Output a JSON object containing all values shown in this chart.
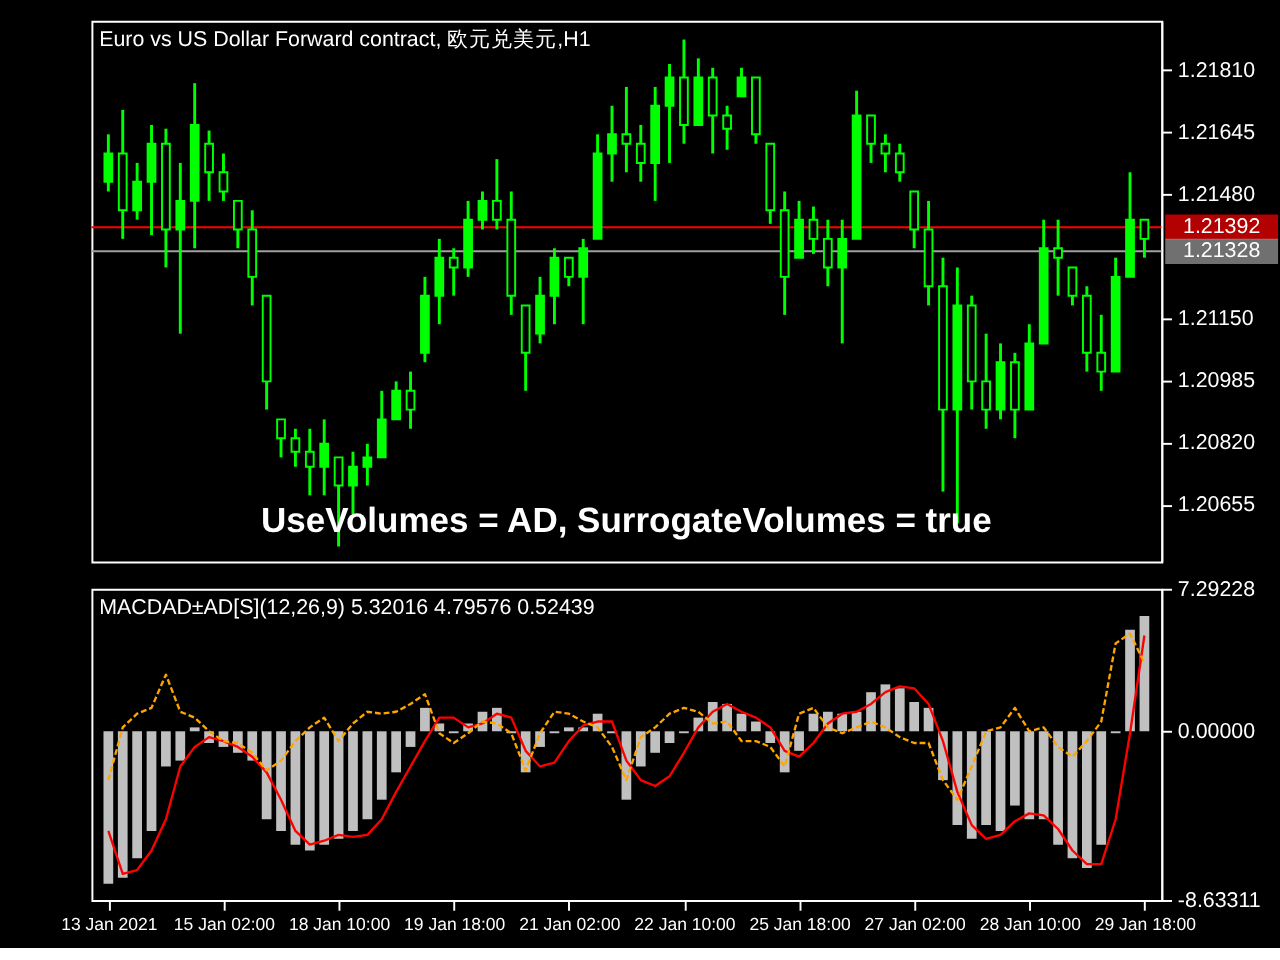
{
  "chart_data": [
    {
      "type": "candlestick",
      "title": "Euro vs US Dollar Forward contract, 欧元兑美元,H1",
      "categories": [
        null,
        null,
        null,
        null,
        null,
        null,
        null,
        null,
        null,
        null,
        null,
        null,
        null,
        null,
        null,
        null,
        null,
        null,
        null,
        null,
        null,
        null,
        null,
        null,
        null,
        null,
        null,
        null,
        null,
        null,
        null,
        null,
        null,
        null,
        null,
        null,
        null,
        null,
        null,
        null,
        null,
        null,
        null,
        null,
        null,
        null,
        null,
        null,
        null,
        null,
        null,
        null,
        null,
        null,
        null,
        null,
        null,
        null,
        null,
        null,
        null,
        null,
        null,
        null,
        null,
        null,
        null,
        null,
        null,
        null,
        null,
        null,
        null
      ],
      "ohlc": [
        [
          1.21513,
          1.21639,
          1.21487,
          1.21588
        ],
        [
          1.21588,
          1.21704,
          1.21361,
          1.21437
        ],
        [
          1.21437,
          1.21563,
          1.21412,
          1.21513
        ],
        [
          1.21513,
          1.21664,
          1.21371,
          1.21614
        ],
        [
          1.21614,
          1.21654,
          1.21285,
          1.21386
        ],
        [
          1.21386,
          1.21563,
          1.21109,
          1.21462
        ],
        [
          1.21462,
          1.21775,
          1.21336,
          1.21664
        ],
        [
          1.21614,
          1.21649,
          1.21462,
          1.21538
        ],
        [
          1.21538,
          1.21588,
          1.21462,
          1.21487
        ],
        [
          1.21462,
          1.21462,
          1.21336,
          1.21386
        ],
        [
          1.21386,
          1.21437,
          1.21184,
          1.2126
        ],
        [
          1.2121,
          1.2121,
          1.20907,
          1.20982
        ],
        [
          1.20881,
          1.20881,
          1.2078,
          1.20831
        ],
        [
          1.20831,
          1.20856,
          1.20755,
          1.20795
        ],
        [
          1.20795,
          1.20856,
          1.20679,
          1.20755
        ],
        [
          1.20755,
          1.20881,
          1.20679,
          1.20816
        ],
        [
          1.2078,
          1.2078,
          1.20543,
          1.20705
        ],
        [
          1.20705,
          1.20795,
          1.20629,
          1.20755
        ],
        [
          1.20755,
          1.20816,
          1.20705,
          1.2078
        ],
        [
          1.2078,
          1.20957,
          1.2078,
          1.20881
        ],
        [
          1.20881,
          1.20982,
          1.20881,
          1.20957
        ],
        [
          1.20957,
          1.21008,
          1.20856,
          1.20907
        ],
        [
          1.21058,
          1.2126,
          1.21033,
          1.2121
        ],
        [
          1.2121,
          1.21361,
          1.21134,
          1.21311
        ],
        [
          1.21311,
          1.21336,
          1.2121,
          1.21285
        ],
        [
          1.21285,
          1.21462,
          1.2126,
          1.21412
        ],
        [
          1.21412,
          1.21487,
          1.21386,
          1.21462
        ],
        [
          1.21462,
          1.21573,
          1.21386,
          1.21412
        ],
        [
          1.21412,
          1.21487,
          1.21159,
          1.2121
        ],
        [
          1.21184,
          1.21184,
          1.20957,
          1.21058
        ],
        [
          1.21109,
          1.2126,
          1.21083,
          1.2121
        ],
        [
          1.2121,
          1.21336,
          1.21134,
          1.21311
        ],
        [
          1.21311,
          1.21311,
          1.21235,
          1.2126
        ],
        [
          1.2126,
          1.21361,
          1.21134,
          1.21336
        ],
        [
          1.21361,
          1.21639,
          1.21361,
          1.21588
        ],
        [
          1.21588,
          1.21715,
          1.21513,
          1.21639
        ],
        [
          1.21639,
          1.21765,
          1.21538,
          1.21614
        ],
        [
          1.21614,
          1.21664,
          1.21513,
          1.21563
        ],
        [
          1.21563,
          1.21765,
          1.21462,
          1.21715
        ],
        [
          1.21715,
          1.21826,
          1.21563,
          1.2179
        ],
        [
          1.2179,
          1.21891,
          1.21614,
          1.21664
        ],
        [
          1.21664,
          1.21841,
          1.21664,
          1.2179
        ],
        [
          1.2179,
          1.21816,
          1.21588,
          1.21689
        ],
        [
          1.21689,
          1.21715,
          1.21598,
          1.21654
        ],
        [
          1.2174,
          1.21816,
          1.2174,
          1.2179
        ],
        [
          1.2179,
          1.2179,
          1.21614,
          1.21639
        ],
        [
          1.21614,
          1.21614,
          1.21401,
          1.21437
        ],
        [
          1.21437,
          1.21487,
          1.21159,
          1.2126
        ],
        [
          1.21311,
          1.21462,
          1.21311,
          1.21412
        ],
        [
          1.21412,
          1.21447,
          1.21321,
          1.21361
        ],
        [
          1.21361,
          1.21412,
          1.21235,
          1.21285
        ],
        [
          1.21285,
          1.21412,
          1.21083,
          1.21361
        ],
        [
          1.21361,
          1.21755,
          1.21361,
          1.21689
        ],
        [
          1.21689,
          1.21689,
          1.21563,
          1.21614
        ],
        [
          1.21614,
          1.21639,
          1.21538,
          1.21588
        ],
        [
          1.21588,
          1.21614,
          1.21513,
          1.21538
        ],
        [
          1.21487,
          1.21487,
          1.21336,
          1.21386
        ],
        [
          1.21386,
          1.21462,
          1.21184,
          1.21235
        ],
        [
          1.21235,
          1.21311,
          1.20689,
          1.20907
        ],
        [
          1.20907,
          1.21285,
          1.20604,
          1.21184
        ],
        [
          1.21184,
          1.2121,
          1.20907,
          1.20982
        ],
        [
          1.20982,
          1.21109,
          1.20856,
          1.20907
        ],
        [
          1.20907,
          1.21083,
          1.20881,
          1.21033
        ],
        [
          1.21033,
          1.21058,
          1.20831,
          1.20907
        ],
        [
          1.20907,
          1.21134,
          1.20907,
          1.21083
        ],
        [
          1.21083,
          1.21412,
          1.21083,
          1.21336
        ],
        [
          1.21336,
          1.21412,
          1.2121,
          1.21311
        ],
        [
          1.21285,
          1.21285,
          1.21184,
          1.2121
        ],
        [
          1.2121,
          1.21235,
          1.21008,
          1.21058
        ],
        [
          1.21058,
          1.21159,
          1.20957,
          1.21008
        ],
        [
          1.21008,
          1.21311,
          1.21008,
          1.2126
        ],
        [
          1.2126,
          1.21538,
          1.2126,
          1.21412
        ],
        [
          1.21412,
          1.21412,
          1.21311,
          1.21361
        ]
      ],
      "color": "#00ff00",
      "ylim": [
        1.20503,
        1.21941
      ],
      "yticks": [
        {
          "value": 1.20655,
          "label": "1.20655"
        },
        {
          "value": 1.2082,
          "label": "1.20820"
        },
        {
          "value": 1.20985,
          "label": "1.20985"
        },
        {
          "value": 1.2115,
          "label": "1.21150"
        },
        {
          "value": 1.2148,
          "label": "1.21480"
        },
        {
          "value": 1.21645,
          "label": "1.21645"
        },
        {
          "value": 1.2181,
          "label": "1.21810"
        }
      ],
      "ref_lines": [
        {
          "axis": "y",
          "value": 1.21392,
          "label": "1.21392",
          "color": "#ff0000"
        },
        {
          "axis": "y",
          "value": 1.21328,
          "label": "1.21328",
          "color": "#a0a0a0"
        }
      ],
      "annotations": [
        "UseVolumes = AD, SurrogateVolumes = true"
      ],
      "tick_labels": "y",
      "grid": false
    },
    {
      "type": "bar",
      "title": "MACDAD±AD[S](12,26,9) 5.32016 4.79576 0.52439",
      "categories": [
        "13 Jan 2021",
        null,
        null,
        null,
        null,
        null,
        null,
        null,
        "15 Jan 02:00",
        null,
        null,
        null,
        null,
        null,
        null,
        null,
        "18 Jan 10:00",
        null,
        null,
        null,
        null,
        null,
        null,
        null,
        "19 Jan 18:00",
        null,
        null,
        null,
        null,
        null,
        null,
        null,
        "21 Jan 02:00",
        null,
        null,
        null,
        null,
        null,
        null,
        null,
        "22 Jan 10:00",
        null,
        null,
        null,
        null,
        null,
        null,
        null,
        "25 Jan 18:00",
        null,
        null,
        null,
        null,
        null,
        null,
        null,
        "27 Jan 02:00",
        null,
        null,
        null,
        null,
        null,
        null,
        null,
        "28 Jan 10:00",
        null,
        null,
        null,
        null,
        null,
        null,
        null,
        "29 Jan 18:00"
      ],
      "series": [
        {
          "type": "bar",
          "color": "#c0c0c0",
          "values": [
            -7.8,
            -7.5,
            -6.5,
            -5.1,
            -1.8,
            -1.5,
            0.2,
            -0.6,
            -0.8,
            -1.1,
            -1.5,
            -4.5,
            -5.1,
            -5.8,
            -6.1,
            -5.8,
            -5.5,
            -5.1,
            -4.5,
            -3.5,
            -2.1,
            -0.8,
            1.2,
            0.4,
            -0.1,
            0.4,
            1.0,
            1.2,
            -0.1,
            -2.1,
            -0.8,
            -0.1,
            0.2,
            0.2,
            0.9,
            -0.1,
            -3.5,
            -1.8,
            -1.1,
            -0.6,
            -0.1,
            0.7,
            1.5,
            1.4,
            0.9,
            0.5,
            -0.6,
            -2.1,
            -1.0,
            0.9,
            1.0,
            0.9,
            1.0,
            2.0,
            2.4,
            2.2,
            1.5,
            1.2,
            -2.5,
            -4.8,
            -5.5,
            -4.8,
            -5.1,
            -3.8,
            -4.5,
            -4.5,
            -5.8,
            -6.5,
            -7.0,
            -5.8,
            -0.1,
            5.2,
            5.9
          ]
        },
        {
          "type": "line",
          "color": "#ff0000",
          "line_style": "solid",
          "values": [
            -5.1,
            -7.3,
            -7.1,
            -6.1,
            -4.5,
            -1.8,
            -0.8,
            -0.3,
            -0.5,
            -0.8,
            -1.3,
            -2.1,
            -3.5,
            -5.1,
            -5.8,
            -5.6,
            -5.3,
            -5.4,
            -5.3,
            -4.5,
            -3.1,
            -1.8,
            -0.5,
            0.7,
            0.7,
            0.2,
            0.4,
            0.9,
            0.7,
            -1.0,
            -1.8,
            -1.6,
            -0.5,
            0.3,
            0.5,
            0.5,
            -1.5,
            -2.5,
            -2.8,
            -2.3,
            -1.1,
            0.2,
            1.0,
            1.4,
            1.0,
            0.7,
            0.2,
            -1.0,
            -1.3,
            -0.6,
            0.4,
            0.9,
            1.0,
            1.4,
            2.0,
            2.3,
            2.2,
            1.4,
            -0.5,
            -3.1,
            -4.8,
            -5.5,
            -5.3,
            -4.6,
            -4.2,
            -4.3,
            -5.0,
            -6.1,
            -6.8,
            -6.8,
            -4.5,
            -0.1,
            4.9
          ]
        },
        {
          "type": "line",
          "color": "#ffa500",
          "line_style": "dashed",
          "values": [
            -2.5,
            0.2,
            0.9,
            1.2,
            2.9,
            1.0,
            0.7,
            0.0,
            -0.5,
            -0.6,
            -1.1,
            -2.0,
            -1.5,
            -0.5,
            0.2,
            0.7,
            -0.5,
            0.4,
            1.0,
            0.9,
            1.0,
            1.4,
            1.9,
            -0.1,
            -0.6,
            -0.1,
            0.5,
            0.4,
            -0.1,
            -2.0,
            -0.1,
            1.0,
            0.9,
            0.5,
            0.2,
            -0.8,
            -2.5,
            -0.3,
            0.2,
            0.9,
            1.2,
            1.0,
            0.4,
            0.5,
            -0.5,
            -0.5,
            -0.8,
            -1.8,
            0.9,
            1.2,
            0.2,
            -0.1,
            0.2,
            0.5,
            0.2,
            -0.3,
            -0.6,
            -0.6,
            -2.5,
            -3.5,
            -1.8,
            0.0,
            0.2,
            1.2,
            0.0,
            0.2,
            -0.8,
            -1.3,
            -0.5,
            0.5,
            4.5,
            5.0,
            3.5
          ]
        }
      ],
      "ylim": [
        -8.63311,
        7.29228
      ],
      "yticks": [
        {
          "value": 7.29228,
          "label": "7.29228"
        },
        {
          "value": 0,
          "label": "0.00000"
        },
        {
          "value": -8.63311,
          "label": "-8.63311"
        }
      ],
      "grid": false
    }
  ]
}
